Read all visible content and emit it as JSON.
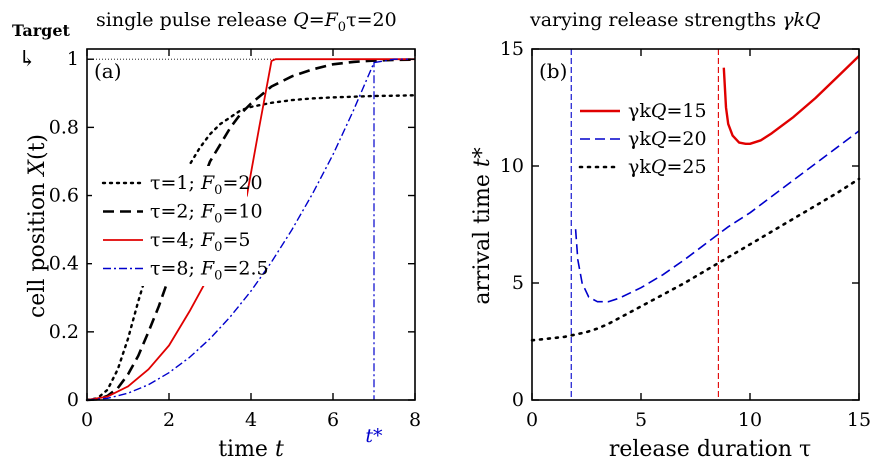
{
  "figure": {
    "target_label": "Target",
    "target_arrow": "↳"
  },
  "chart_data": [
    {
      "type": "line",
      "panel_label": "(a)",
      "title": "single pulse release Q=F₀τ=20",
      "title_parts": {
        "lead": "single pulse release ",
        "Q": "Q",
        "eq": "=",
        "F": "F",
        "sub": "0",
        "tau_eq": "τ=20"
      },
      "xlabel": "time t",
      "xlabel_parts": {
        "lead": "time ",
        "var": "t"
      },
      "ylabel": "cell position X(t)",
      "ylabel_parts": {
        "lead": "cell position ",
        "var": "X",
        "paren": "(t)"
      },
      "xlim": [
        0,
        8
      ],
      "ylim": [
        0,
        1.03
      ],
      "xticks": [
        "0",
        "2",
        "4",
        "6",
        "8"
      ],
      "yticks": [
        "0",
        "0.2",
        "0.4",
        "0.6",
        "0.8",
        "1"
      ],
      "target_value": 1,
      "t_star": {
        "label": "t*",
        "x": 7.0
      },
      "series": [
        {
          "name": "τ=1; F₀=20",
          "tau": "τ=1; ",
          "F": "F",
          "sub": "0",
          "rest": "=20",
          "color": "#000000",
          "dash": "2,5",
          "width": 2.4,
          "cap": "round",
          "x": [
            0,
            0.25,
            0.5,
            0.75,
            1.0,
            1.25,
            1.5,
            1.75,
            2.0,
            2.25,
            2.5,
            2.75,
            3.0,
            3.25,
            3.5,
            3.75,
            4,
            4.5,
            5,
            5.5,
            6,
            6.5,
            7,
            7.5,
            8
          ],
          "y": [
            0,
            0.005,
            0.03,
            0.09,
            0.18,
            0.29,
            0.39,
            0.48,
            0.56,
            0.63,
            0.69,
            0.74,
            0.78,
            0.81,
            0.83,
            0.85,
            0.86,
            0.872,
            0.88,
            0.885,
            0.888,
            0.89,
            0.892,
            0.893,
            0.894
          ]
        },
        {
          "name": "τ=2; F₀=10",
          "tau": "τ=2; ",
          "F": "F",
          "sub": "0",
          "rest": "=10",
          "color": "#000000",
          "dash": "11,6",
          "width": 2.6,
          "cap": "butt",
          "x": [
            0,
            0.25,
            0.5,
            0.75,
            1.0,
            1.25,
            1.5,
            1.75,
            2.0,
            2.25,
            2.5,
            2.75,
            3.0,
            3.25,
            3.5,
            3.75,
            4,
            4.5,
            5,
            5.5,
            6,
            6.5,
            7,
            7.5,
            8
          ],
          "y": [
            0,
            0.002,
            0.012,
            0.035,
            0.075,
            0.13,
            0.2,
            0.275,
            0.36,
            0.45,
            0.54,
            0.62,
            0.7,
            0.75,
            0.8,
            0.84,
            0.87,
            0.92,
            0.95,
            0.97,
            0.985,
            0.992,
            0.996,
            0.998,
            0.999
          ]
        },
        {
          "name": "τ=4; F₀=5",
          "tau": "τ=4; ",
          "F": "F",
          "sub": "0",
          "rest": "=5",
          "color": "#e00000",
          "dash": "",
          "width": 1.8,
          "cap": "butt",
          "x": [
            0,
            0.5,
            1.0,
            1.5,
            2.0,
            2.5,
            3.0,
            3.5,
            3.9,
            4.2,
            4.5,
            4.6,
            5,
            6,
            7,
            8
          ],
          "y": [
            0,
            0.01,
            0.04,
            0.09,
            0.16,
            0.26,
            0.37,
            0.5,
            0.6,
            0.8,
            0.995,
            1,
            1,
            1,
            1,
            1
          ]
        },
        {
          "name": "τ=8; F₀=2.5",
          "tau": "τ=8; ",
          "F": "F",
          "sub": "0",
          "rest": "=2.5",
          "color": "#0000cc",
          "dash": "8,3,2,3",
          "width": 1.4,
          "cap": "butt",
          "x": [
            0,
            0.5,
            1.0,
            1.5,
            2.0,
            2.5,
            3.0,
            3.5,
            4.0,
            4.5,
            5.0,
            5.5,
            6.0,
            6.5,
            7.0,
            7.5,
            8
          ],
          "y": [
            0,
            0.005,
            0.02,
            0.045,
            0.08,
            0.125,
            0.18,
            0.245,
            0.32,
            0.405,
            0.5,
            0.605,
            0.72,
            0.85,
            0.99,
            1,
            1
          ]
        }
      ]
    },
    {
      "type": "line",
      "panel_label": "(b)",
      "title": "varying release strengths γkQ",
      "title_parts": {
        "lead": "varying release strengths ",
        "var": "γkQ"
      },
      "xlabel": "release duration τ",
      "ylabel": "arrival time t*",
      "ylabel_parts": {
        "lead": "arrival time ",
        "var": "t*"
      },
      "xlim": [
        0,
        15
      ],
      "ylim": [
        0,
        15
      ],
      "xticks": [
        "0",
        "5",
        "10",
        "15"
      ],
      "yticks": [
        "0",
        "5",
        "10",
        "15"
      ],
      "vlines": [
        {
          "x": 1.8,
          "color": "#0000cc"
        },
        {
          "x": 8.55,
          "color": "#e00000"
        }
      ],
      "series": [
        {
          "name": "γkQ=15",
          "lead": "γk",
          "var": "Q",
          "rest": "=15",
          "color": "#e00000",
          "dash": "",
          "width": 2.4,
          "cap": "butt",
          "x": [
            8.8,
            8.9,
            9.0,
            9.2,
            9.5,
            9.8,
            10.0,
            10.5,
            11,
            12,
            13,
            14,
            15
          ],
          "y": [
            14.2,
            12.5,
            11.8,
            11.3,
            11.0,
            10.95,
            10.95,
            11.1,
            11.4,
            12.1,
            12.9,
            13.8,
            14.7
          ]
        },
        {
          "name": "γkQ=20",
          "lead": "γk",
          "var": "Q",
          "rest": "=20",
          "color": "#0000cc",
          "dash": "10,5",
          "width": 1.6,
          "cap": "butt",
          "x": [
            2.0,
            2.1,
            2.3,
            2.6,
            3.0,
            3.5,
            4,
            5,
            6,
            7,
            8,
            9,
            10,
            11,
            12,
            13,
            14,
            15
          ],
          "y": [
            7.3,
            6.0,
            5.0,
            4.4,
            4.2,
            4.2,
            4.35,
            4.8,
            5.35,
            6.0,
            6.7,
            7.4,
            8.0,
            8.7,
            9.4,
            10.1,
            10.8,
            11.5
          ]
        },
        {
          "name": "γkQ=25",
          "lead": "γk",
          "var": "Q",
          "rest": "=25",
          "color": "#000000",
          "dash": "2,6",
          "width": 2.6,
          "cap": "round",
          "x": [
            0,
            0.5,
            1,
            1.5,
            2,
            2.5,
            3,
            3.5,
            4,
            5,
            6,
            7,
            8,
            9,
            10,
            11,
            12,
            13,
            14,
            15
          ],
          "y": [
            2.55,
            2.6,
            2.65,
            2.7,
            2.8,
            2.9,
            3.05,
            3.25,
            3.5,
            4.0,
            4.5,
            5.0,
            5.55,
            6.1,
            6.65,
            7.2,
            7.75,
            8.3,
            8.85,
            9.45
          ]
        }
      ]
    }
  ]
}
